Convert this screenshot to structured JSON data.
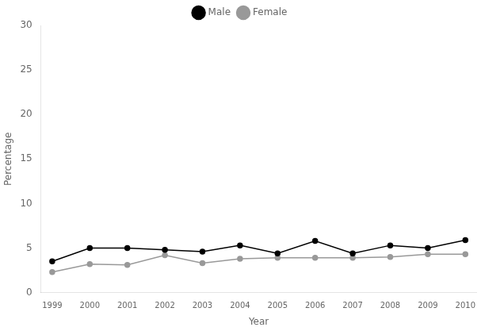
{
  "chart_data": {
    "type": "line",
    "x": [
      1999,
      2000,
      2001,
      2002,
      2003,
      2004,
      2005,
      2006,
      2007,
      2008,
      2009,
      2010
    ],
    "series": [
      {
        "name": "Male",
        "color": "#000000",
        "marker": "circle",
        "values": [
          3.5,
          5.0,
          5.0,
          4.8,
          4.6,
          5.3,
          4.4,
          5.8,
          4.4,
          5.3,
          5.0,
          5.9
        ]
      },
      {
        "name": "Female",
        "color": "#999999",
        "marker": "circle",
        "values": [
          2.3,
          3.2,
          3.1,
          4.2,
          3.3,
          3.8,
          3.9,
          3.9,
          3.9,
          4.0,
          4.3,
          4.3
        ]
      }
    ],
    "xlabel": "Year",
    "ylabel": "Percentage",
    "xlim": [
      1998.7,
      2010.3
    ],
    "xticks": [
      1999,
      2000,
      2001,
      2002,
      2003,
      2004,
      2005,
      2006,
      2007,
      2008,
      2009,
      2010
    ],
    "ylim": [
      0,
      30
    ],
    "yticks": [
      0,
      5,
      10,
      15,
      20,
      25,
      30
    ],
    "grid": false
  }
}
